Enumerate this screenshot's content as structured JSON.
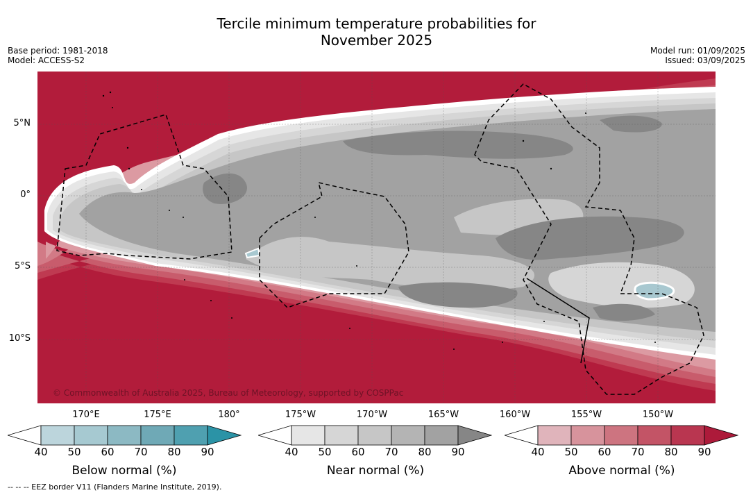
{
  "header": {
    "title_line1": "Tercile minimum temperature probabilities for",
    "title_line2": "November 2025",
    "base_period": "Base period: 1981-2018",
    "model": "Model: ACCESS-S2",
    "model_run": "Model run: 01/09/2025",
    "issued": "Issued: 03/09/2025"
  },
  "map": {
    "lat_labels": [
      "5°N",
      "0°",
      "5°S",
      "10°S"
    ],
    "lon_labels": [
      "170°E",
      "175°E",
      "180°",
      "175°W",
      "170°W",
      "165°W",
      "160°W",
      "155°W",
      "150°W"
    ],
    "copyright": "© Commonwealth of Australia 2025, Bureau of Meteorology, supported by COSPPac",
    "colors": {
      "above_90": "#b21c3b",
      "above_80": "#bf3a51",
      "above_70": "#c85c6c",
      "above_60": "#d27a86",
      "above_50": "#dc9aa2",
      "white": "#ffffff",
      "near_40": "#e6e6e6",
      "near_50": "#d6d6d6",
      "near_60": "#c6c6c6",
      "near_70": "#b4b4b4",
      "near_80": "#a2a2a2",
      "near_90": "#868686",
      "below": "#a8c8d0"
    }
  },
  "legends": [
    {
      "label": "Below normal (%)",
      "ticks": [
        "40",
        "50",
        "60",
        "70",
        "80",
        "90"
      ],
      "colors": [
        "#bcd5dc",
        "#a6c9d1",
        "#8cb9c3",
        "#6fa9b6",
        "#4fa0b0",
        "#2b93a6"
      ]
    },
    {
      "label": "Near normal (%)",
      "ticks": [
        "40",
        "50",
        "60",
        "70",
        "80",
        "90"
      ],
      "colors": [
        "#e6e6e6",
        "#d6d6d6",
        "#c6c6c6",
        "#b4b4b4",
        "#a2a2a2",
        "#868686"
      ]
    },
    {
      "label": "Above normal (%)",
      "ticks": [
        "40",
        "50",
        "60",
        "70",
        "80",
        "90"
      ],
      "colors": [
        "#e0b4bb",
        "#d7939c",
        "#cd7480",
        "#c35466",
        "#b93650",
        "#ad1a3a"
      ]
    }
  ],
  "footer": "-- -- -- EEZ border V11 (Flanders Marine Institute, 2019)."
}
